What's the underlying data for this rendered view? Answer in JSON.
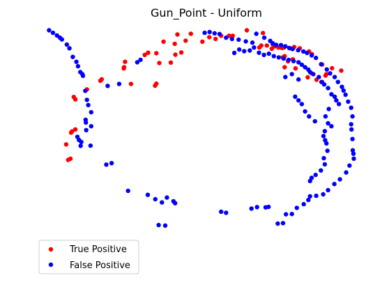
{
  "chart_data": {
    "type": "scatter",
    "title": "Gun_Point - Uniform",
    "xlabel": "",
    "ylabel": "",
    "axes_visible": false,
    "grid": false,
    "xlim": [
      0,
      1
    ],
    "ylim": [
      0,
      1
    ],
    "legend_position": "lower-left",
    "series": [
      {
        "name": "True Positive",
        "color": "#ff0000",
        "points": [
          [
            0.623,
            0.99
          ],
          [
            0.672,
            0.979
          ],
          [
            0.569,
            0.968
          ],
          [
            0.58,
            0.968
          ],
          [
            0.453,
            0.976
          ],
          [
            0.412,
            0.973
          ],
          [
            0.437,
            0.948
          ],
          [
            0.488,
            0.944
          ],
          [
            0.509,
            0.962
          ],
          [
            0.545,
            0.968
          ],
          [
            0.528,
            0.955
          ],
          [
            0.404,
            0.935
          ],
          [
            0.37,
            0.944
          ],
          [
            0.313,
            0.89
          ],
          [
            0.323,
            0.899
          ],
          [
            0.424,
            0.9
          ],
          [
            0.406,
            0.891
          ],
          [
            0.348,
            0.897
          ],
          [
            0.392,
            0.859
          ],
          [
            0.357,
            0.857
          ],
          [
            0.253,
            0.862
          ],
          [
            0.25,
            0.84
          ],
          [
            0.249,
            0.835
          ],
          [
            0.182,
            0.791
          ],
          [
            0.178,
            0.785
          ],
          [
            0.348,
            0.773
          ],
          [
            0.344,
            0.765
          ],
          [
            0.271,
            0.772
          ],
          [
            0.137,
            0.75
          ],
          [
            0.097,
            0.719
          ],
          [
            0.102,
            0.709
          ],
          [
            0.661,
            0.92
          ],
          [
            0.667,
            0.928
          ],
          [
            0.684,
            0.928
          ],
          [
            0.702,
            0.933
          ],
          [
            0.708,
            0.925
          ],
          [
            0.699,
            0.915
          ],
          [
            0.719,
            0.92
          ],
          [
            0.73,
            0.918
          ],
          [
            0.736,
            0.92
          ],
          [
            0.755,
            0.917
          ],
          [
            0.767,
            0.922
          ],
          [
            0.784,
            0.917
          ],
          [
            0.812,
            0.904
          ],
          [
            0.738,
            0.885
          ],
          [
            0.732,
            0.88
          ],
          [
            0.748,
            0.864
          ],
          [
            0.763,
            0.872
          ],
          [
            0.821,
            0.893
          ],
          [
            0.852,
            0.851
          ],
          [
            0.819,
            0.816
          ],
          [
            0.882,
            0.836
          ],
          [
            0.91,
            0.826
          ],
          [
            0.865,
            0.812
          ],
          [
            0.862,
            0.806
          ],
          [
            0.808,
            0.799
          ],
          [
            0.835,
            0.789
          ],
          [
            0.852,
            0.78
          ],
          [
            0.771,
            0.835
          ],
          [
            0.738,
            0.84
          ],
          [
            0.102,
            0.587
          ],
          [
            0.092,
            0.579
          ],
          [
            0.089,
            0.574
          ],
          [
            0.074,
            0.526
          ],
          [
            0.087,
            0.468
          ],
          [
            0.08,
            0.463
          ]
        ]
      },
      {
        "name": "False Positive",
        "color": "#0000ff",
        "points": [
          [
            0.652,
            0.976
          ],
          [
            0.676,
            0.96
          ],
          [
            0.694,
            0.947
          ],
          [
            0.702,
            0.937
          ],
          [
            0.712,
            0.931
          ],
          [
            0.727,
            0.93
          ],
          [
            0.74,
            0.925
          ],
          [
            0.752,
            0.918
          ],
          [
            0.762,
            0.914
          ],
          [
            0.779,
            0.909
          ],
          [
            0.795,
            0.904
          ],
          [
            0.806,
            0.898
          ],
          [
            0.82,
            0.888
          ],
          [
            0.833,
            0.878
          ],
          [
            0.849,
            0.852
          ],
          [
            0.866,
            0.831
          ],
          [
            0.876,
            0.815
          ],
          [
            0.89,
            0.8
          ],
          [
            0.9,
            0.78
          ],
          [
            0.912,
            0.76
          ],
          [
            0.917,
            0.745
          ],
          [
            0.923,
            0.728
          ],
          [
            0.931,
            0.7
          ],
          [
            0.94,
            0.675
          ],
          [
            0.944,
            0.64
          ],
          [
            0.94,
            0.608
          ],
          [
            0.941,
            0.587
          ],
          [
            0.944,
            0.548
          ],
          [
            0.945,
            0.502
          ],
          [
            0.947,
            0.488
          ],
          [
            0.948,
            0.468
          ],
          [
            0.935,
            0.44
          ],
          [
            0.925,
            0.412
          ],
          [
            0.906,
            0.384
          ],
          [
            0.889,
            0.365
          ],
          [
            0.87,
            0.34
          ],
          [
            0.855,
            0.323
          ],
          [
            0.834,
            0.317
          ],
          [
            0.815,
            0.315
          ],
          [
            0.81,
            0.3
          ],
          [
            0.796,
            0.283
          ],
          [
            0.775,
            0.268
          ],
          [
            0.76,
            0.243
          ],
          [
            0.742,
            0.242
          ],
          [
            0.733,
            0.206
          ],
          [
            0.717,
            0.204
          ],
          [
            0.689,
            0.272
          ],
          [
            0.68,
            0.27
          ],
          [
            0.654,
            0.271
          ],
          [
            0.637,
            0.265
          ],
          [
            0.56,
            0.248
          ],
          [
            0.545,
            0.252
          ],
          [
            0.405,
            0.287
          ],
          [
            0.4,
            0.295
          ],
          [
            0.38,
            0.31
          ],
          [
            0.365,
            0.29
          ],
          [
            0.345,
            0.303
          ],
          [
            0.322,
            0.321
          ],
          [
            0.262,
            0.337
          ],
          [
            0.355,
            0.198
          ],
          [
            0.375,
            0.196
          ],
          [
            0.212,
            0.45
          ],
          [
            0.196,
            0.444
          ],
          [
            0.148,
            0.521
          ],
          [
            0.135,
            0.584
          ],
          [
            0.134,
            0.615
          ],
          [
            0.133,
            0.626
          ],
          [
            0.15,
            0.657
          ],
          [
            0.141,
            0.686
          ],
          [
            0.137,
            0.707
          ],
          [
            0.132,
            0.744
          ],
          [
            0.125,
            0.805
          ],
          [
            0.123,
            0.812
          ],
          [
            0.117,
            0.82
          ],
          [
            0.11,
            0.844
          ],
          [
            0.105,
            0.862
          ],
          [
            0.094,
            0.882
          ],
          [
            0.084,
            0.917
          ],
          [
            0.076,
            0.932
          ],
          [
            0.061,
            0.953
          ],
          [
            0.055,
            0.96
          ],
          [
            0.046,
            0.969
          ],
          [
            0.034,
            0.98
          ],
          [
            0.022,
            0.99
          ],
          [
            0.15,
            0.6
          ],
          [
            0.108,
            0.557
          ],
          [
            0.113,
            0.544
          ],
          [
            0.12,
            0.536
          ],
          [
            0.118,
            0.52
          ],
          [
            0.2,
            0.764
          ],
          [
            0.235,
            0.772
          ],
          [
            0.29,
            0.86
          ],
          [
            0.3,
            0.87
          ],
          [
            0.495,
            0.98
          ],
          [
            0.51,
            0.983
          ],
          [
            0.525,
            0.978
          ],
          [
            0.54,
            0.975
          ],
          [
            0.56,
            0.96
          ],
          [
            0.578,
            0.955
          ],
          [
            0.598,
            0.952
          ],
          [
            0.62,
            0.945
          ],
          [
            0.64,
            0.94
          ],
          [
            0.585,
            0.898
          ],
          [
            0.6,
            0.912
          ],
          [
            0.615,
            0.905
          ],
          [
            0.632,
            0.908
          ],
          [
            0.645,
            0.92
          ],
          [
            0.66,
            0.899
          ],
          [
            0.675,
            0.89
          ],
          [
            0.69,
            0.895
          ],
          [
            0.705,
            0.885
          ],
          [
            0.72,
            0.88
          ],
          [
            0.735,
            0.875
          ],
          [
            0.75,
            0.87
          ],
          [
            0.765,
            0.865
          ],
          [
            0.78,
            0.86
          ],
          [
            0.79,
            0.85
          ],
          [
            0.8,
            0.84
          ],
          [
            0.81,
            0.83
          ],
          [
            0.815,
            0.82
          ],
          [
            0.825,
            0.812
          ],
          [
            0.842,
            0.8
          ],
          [
            0.85,
            0.78
          ],
          [
            0.858,
            0.77
          ],
          [
            0.87,
            0.755
          ],
          [
            0.88,
            0.73
          ],
          [
            0.89,
            0.72
          ],
          [
            0.895,
            0.705
          ],
          [
            0.903,
            0.69
          ],
          [
            0.872,
            0.67
          ],
          [
            0.862,
            0.64
          ],
          [
            0.87,
            0.612
          ],
          [
            0.88,
            0.6
          ],
          [
            0.86,
            0.58
          ],
          [
            0.856,
            0.56
          ],
          [
            0.861,
            0.543
          ],
          [
            0.865,
            0.53
          ],
          [
            0.868,
            0.5
          ],
          [
            0.857,
            0.47
          ],
          [
            0.86,
            0.445
          ],
          [
            0.848,
            0.42
          ],
          [
            0.832,
            0.402
          ],
          [
            0.82,
            0.39
          ],
          [
            0.815,
            0.377
          ],
          [
            0.74,
            0.8
          ],
          [
            0.76,
            0.812
          ],
          [
            0.78,
            0.79
          ],
          [
            0.77,
            0.72
          ],
          [
            0.78,
            0.705
          ],
          [
            0.79,
            0.69
          ],
          [
            0.8,
            0.66
          ],
          [
            0.812,
            0.64
          ],
          [
            0.83,
            0.62
          ]
        ]
      }
    ]
  }
}
